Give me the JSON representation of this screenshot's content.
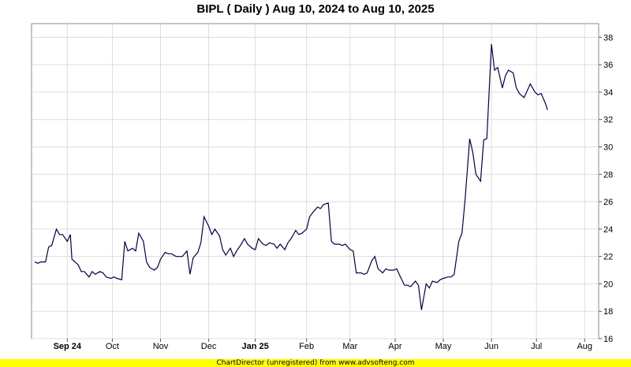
{
  "title": "BIPL ( Daily ) Aug 10, 2024 to Aug 10, 2025",
  "footer": "ChartDirector (unregistered) from www.advsofteng.com",
  "chart_data": {
    "type": "line",
    "title": "BIPL ( Daily ) Aug 10, 2024 to Aug 10, 2025",
    "xlim": [
      "2024-08-10",
      "2025-08-10"
    ],
    "ylim": [
      16,
      39
    ],
    "y_ticks": [
      16,
      18,
      20,
      22,
      24,
      26,
      28,
      30,
      32,
      34,
      36,
      38
    ],
    "x_ticks": [
      {
        "date": "2024-09-02",
        "label": "Sep 24"
      },
      {
        "date": "2024-10-01",
        "label": "Oct"
      },
      {
        "date": "2024-11-01",
        "label": "Nov"
      },
      {
        "date": "2024-12-02",
        "label": "Dec"
      },
      {
        "date": "2025-01-01",
        "label": "Jan 25"
      },
      {
        "date": "2025-02-03",
        "label": "Feb"
      },
      {
        "date": "2025-03-03",
        "label": "Mar"
      },
      {
        "date": "2025-04-01",
        "label": "Apr"
      },
      {
        "date": "2025-05-02",
        "label": "May"
      },
      {
        "date": "2025-06-02",
        "label": "Jun"
      },
      {
        "date": "2025-07-01",
        "label": "Jul"
      },
      {
        "date": "2025-08-01",
        "label": "Aug"
      }
    ],
    "grid": true,
    "y_axis_side": "right",
    "line_color": "#000050",
    "series": [
      {
        "values": [
          [
            "2024-08-12",
            21.6
          ],
          [
            "2024-08-14",
            21.5
          ],
          [
            "2024-08-16",
            21.6
          ],
          [
            "2024-08-19",
            21.6
          ],
          [
            "2024-08-21",
            22.7
          ],
          [
            "2024-08-23",
            22.8
          ],
          [
            "2024-08-26",
            24.0
          ],
          [
            "2024-08-28",
            23.6
          ],
          [
            "2024-08-30",
            23.6
          ],
          [
            "2024-09-02",
            23.1
          ],
          [
            "2024-09-04",
            23.6
          ],
          [
            "2024-09-05",
            21.8
          ],
          [
            "2024-09-09",
            21.4
          ],
          [
            "2024-09-11",
            20.9
          ],
          [
            "2024-09-13",
            20.9
          ],
          [
            "2024-09-16",
            20.5
          ],
          [
            "2024-09-18",
            20.9
          ],
          [
            "2024-09-20",
            20.7
          ],
          [
            "2024-09-23",
            20.9
          ],
          [
            "2024-09-25",
            20.8
          ],
          [
            "2024-09-27",
            20.5
          ],
          [
            "2024-09-30",
            20.4
          ],
          [
            "2024-10-02",
            20.5
          ],
          [
            "2024-10-04",
            20.4
          ],
          [
            "2024-10-07",
            20.3
          ],
          [
            "2024-10-09",
            23.1
          ],
          [
            "2024-10-11",
            22.4
          ],
          [
            "2024-10-14",
            22.6
          ],
          [
            "2024-10-16",
            22.4
          ],
          [
            "2024-10-18",
            23.7
          ],
          [
            "2024-10-21",
            23.1
          ],
          [
            "2024-10-23",
            21.6
          ],
          [
            "2024-10-25",
            21.2
          ],
          [
            "2024-10-28",
            21.0
          ],
          [
            "2024-10-30",
            21.2
          ],
          [
            "2024-11-01",
            21.8
          ],
          [
            "2024-11-04",
            22.3
          ],
          [
            "2024-11-06",
            22.2
          ],
          [
            "2024-11-08",
            22.2
          ],
          [
            "2024-11-11",
            22.0
          ],
          [
            "2024-11-13",
            22.0
          ],
          [
            "2024-11-15",
            22.0
          ],
          [
            "2024-11-18",
            22.4
          ],
          [
            "2024-11-20",
            20.7
          ],
          [
            "2024-11-22",
            21.9
          ],
          [
            "2024-11-25",
            22.3
          ],
          [
            "2024-11-27",
            23.0
          ],
          [
            "2024-11-29",
            24.9
          ],
          [
            "2024-12-02",
            24.2
          ],
          [
            "2024-12-04",
            23.6
          ],
          [
            "2024-12-06",
            24.0
          ],
          [
            "2024-12-09",
            23.5
          ],
          [
            "2024-12-11",
            22.5
          ],
          [
            "2024-12-13",
            22.1
          ],
          [
            "2024-12-16",
            22.6
          ],
          [
            "2024-12-18",
            22.0
          ],
          [
            "2024-12-20",
            22.4
          ],
          [
            "2024-12-23",
            22.9
          ],
          [
            "2024-12-25",
            23.3
          ],
          [
            "2024-12-27",
            22.9
          ],
          [
            "2024-12-30",
            22.6
          ],
          [
            "2025-01-01",
            22.5
          ],
          [
            "2025-01-03",
            23.3
          ],
          [
            "2025-01-06",
            22.9
          ],
          [
            "2025-01-08",
            22.8
          ],
          [
            "2025-01-10",
            23.0
          ],
          [
            "2025-01-13",
            22.9
          ],
          [
            "2025-01-15",
            22.6
          ],
          [
            "2025-01-17",
            22.9
          ],
          [
            "2025-01-20",
            22.5
          ],
          [
            "2025-01-22",
            23.0
          ],
          [
            "2025-01-24",
            23.3
          ],
          [
            "2025-01-27",
            23.9
          ],
          [
            "2025-01-29",
            23.6
          ],
          [
            "2025-01-31",
            23.7
          ],
          [
            "2025-02-03",
            24.0
          ],
          [
            "2025-02-05",
            24.9
          ],
          [
            "2025-02-07",
            25.2
          ],
          [
            "2025-02-10",
            25.6
          ],
          [
            "2025-02-12",
            25.5
          ],
          [
            "2025-02-14",
            25.8
          ],
          [
            "2025-02-17",
            25.9
          ],
          [
            "2025-02-19",
            23.1
          ],
          [
            "2025-02-21",
            22.9
          ],
          [
            "2025-02-24",
            22.9
          ],
          [
            "2025-02-26",
            22.8
          ],
          [
            "2025-02-28",
            22.9
          ],
          [
            "2025-03-03",
            22.5
          ],
          [
            "2025-03-05",
            22.4
          ],
          [
            "2025-03-07",
            20.8
          ],
          [
            "2025-03-10",
            20.8
          ],
          [
            "2025-03-12",
            20.7
          ],
          [
            "2025-03-14",
            20.8
          ],
          [
            "2025-03-17",
            21.7
          ],
          [
            "2025-03-19",
            22.0
          ],
          [
            "2025-03-21",
            21.1
          ],
          [
            "2025-03-24",
            20.8
          ],
          [
            "2025-03-26",
            21.1
          ],
          [
            "2025-03-28",
            21.0
          ],
          [
            "2025-03-31",
            21.0
          ],
          [
            "2025-04-02",
            21.1
          ],
          [
            "2025-04-04",
            20.6
          ],
          [
            "2025-04-07",
            19.9
          ],
          [
            "2025-04-09",
            19.9
          ],
          [
            "2025-04-11",
            19.8
          ],
          [
            "2025-04-14",
            20.2
          ],
          [
            "2025-04-16",
            19.9
          ],
          [
            "2025-04-18",
            18.1
          ],
          [
            "2025-04-21",
            20.0
          ],
          [
            "2025-04-23",
            19.7
          ],
          [
            "2025-04-25",
            20.2
          ],
          [
            "2025-04-28",
            20.1
          ],
          [
            "2025-04-30",
            20.3
          ],
          [
            "2025-05-02",
            20.4
          ],
          [
            "2025-05-05",
            20.5
          ],
          [
            "2025-05-07",
            20.5
          ],
          [
            "2025-05-09",
            20.7
          ],
          [
            "2025-05-12",
            23.1
          ],
          [
            "2025-05-14",
            23.7
          ],
          [
            "2025-05-16",
            26.1
          ],
          [
            "2025-05-19",
            30.6
          ],
          [
            "2025-05-21",
            29.6
          ],
          [
            "2025-05-23",
            28.0
          ],
          [
            "2025-05-26",
            27.5
          ],
          [
            "2025-05-28",
            30.5
          ],
          [
            "2025-05-30",
            30.6
          ],
          [
            "2025-06-02",
            37.5
          ],
          [
            "2025-06-04",
            35.6
          ],
          [
            "2025-06-06",
            35.8
          ],
          [
            "2025-06-09",
            34.3
          ],
          [
            "2025-06-11",
            35.2
          ],
          [
            "2025-06-13",
            35.6
          ],
          [
            "2025-06-16",
            35.4
          ],
          [
            "2025-06-18",
            34.3
          ],
          [
            "2025-06-20",
            33.9
          ],
          [
            "2025-06-23",
            33.6
          ],
          [
            "2025-06-25",
            34.1
          ],
          [
            "2025-06-27",
            34.6
          ],
          [
            "2025-06-30",
            34.0
          ],
          [
            "2025-07-02",
            33.8
          ],
          [
            "2025-07-04",
            33.9
          ],
          [
            "2025-07-07",
            33.1
          ],
          [
            "2025-07-08",
            32.7
          ]
        ]
      }
    ]
  }
}
